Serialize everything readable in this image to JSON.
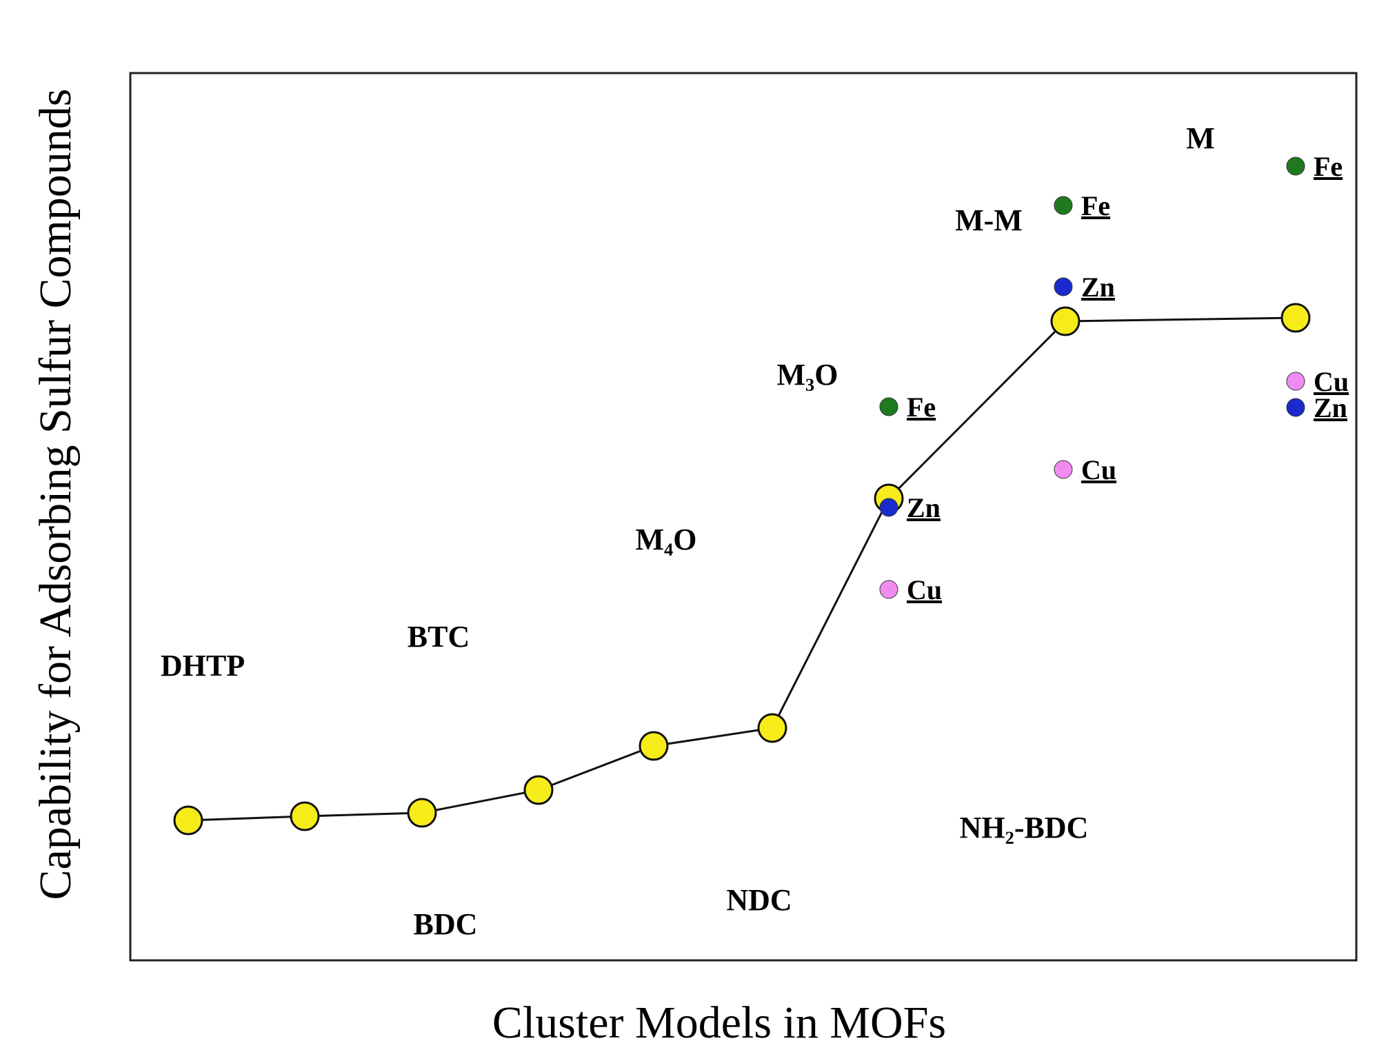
{
  "axes": {
    "x_label": "Cluster Models in MOFs",
    "y_label": "Capability for Adsorbing Sulfur Compounds"
  },
  "linkers": [
    {
      "label": "DHTP"
    },
    {
      "label": "BDC"
    },
    {
      "label": "BTC"
    },
    {
      "label": "NDC"
    },
    {
      "label": "M₄O"
    },
    {
      "label": "NH₂-BDC"
    },
    {
      "label": "M₃O"
    },
    {
      "label": "M-M"
    },
    {
      "label": "M"
    }
  ],
  "metal_groups": [
    {
      "cluster": "M₃O",
      "metals": [
        {
          "label": "Fe",
          "color": "#1f7a1f"
        },
        {
          "label": "Zn",
          "color": "#1a2acc"
        },
        {
          "label": "Cu",
          "color": "#f08cf0"
        }
      ]
    },
    {
      "cluster": "M-M",
      "metals": [
        {
          "label": "Fe",
          "color": "#1f7a1f"
        },
        {
          "label": "Zn",
          "color": "#1a2acc"
        },
        {
          "label": "Cu",
          "color": "#f08cf0"
        }
      ]
    },
    {
      "cluster": "M",
      "metals": [
        {
          "label": "Fe",
          "color": "#1f7a1f"
        },
        {
          "label": "Cu",
          "color": "#f08cf0"
        },
        {
          "label": "Zn",
          "color": "#1a2acc"
        }
      ]
    }
  ]
}
